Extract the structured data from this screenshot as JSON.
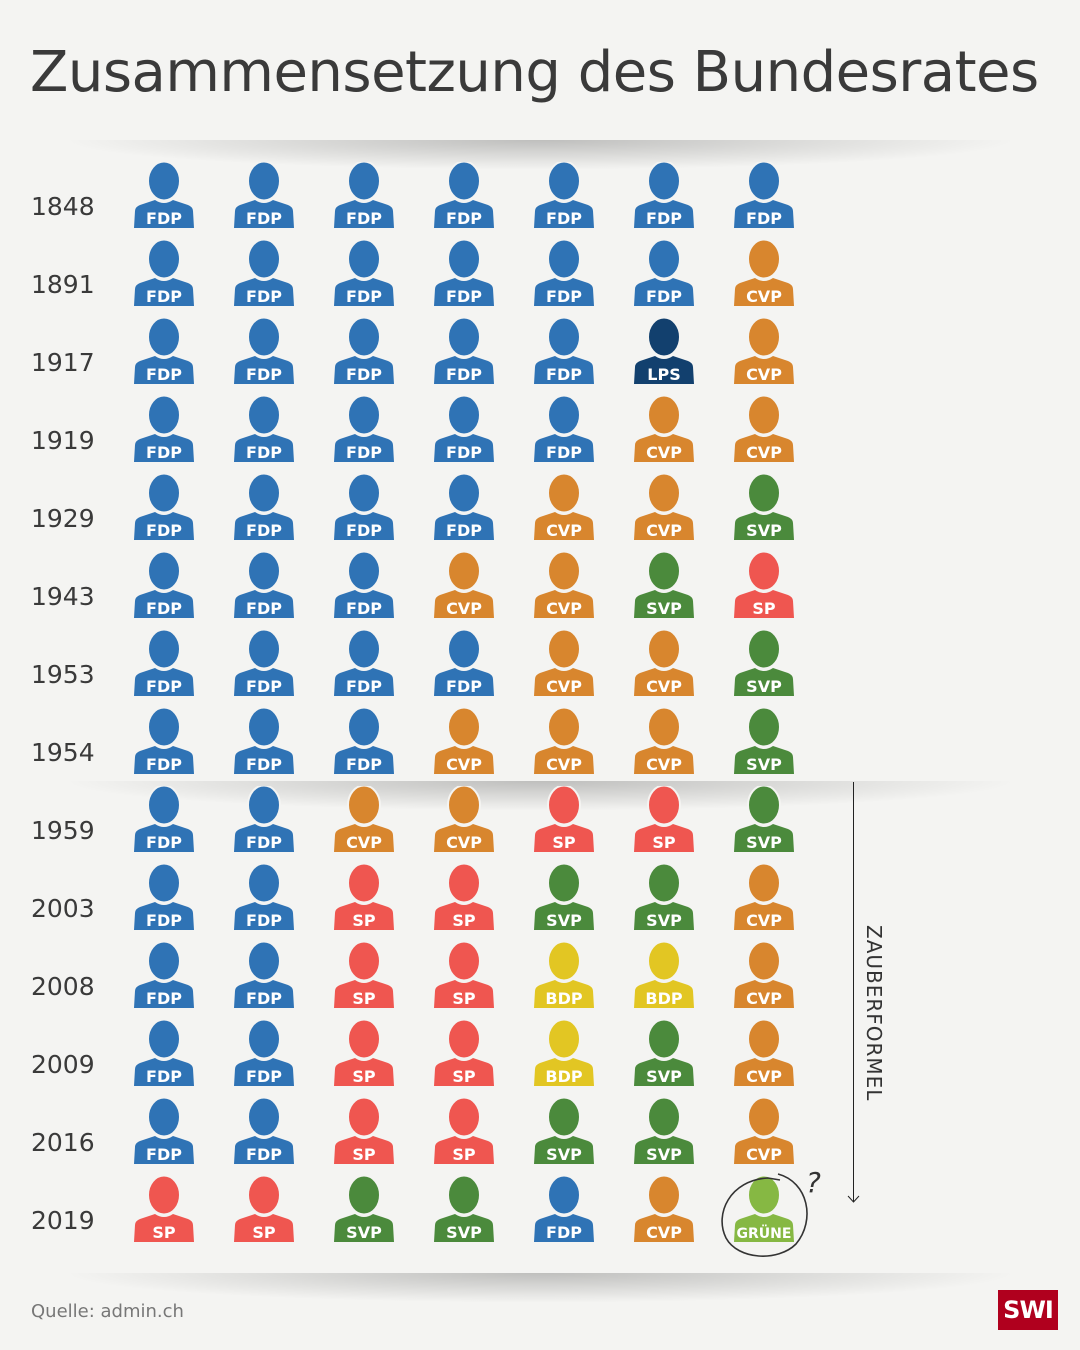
{
  "title": "Zusammensetzung des Bundesrates",
  "annotation": "ZAUBERFORMEL",
  "question_mark": "?",
  "source": "Quelle: admin.ch",
  "logo": "SWI",
  "colors": {
    "FDP": "#2f73b5",
    "CVP": "#d8862e",
    "SVP": "#4b8a3c",
    "SP": "#ef5650",
    "LPS": "#12406e",
    "BDP": "#e2c623",
    "GRÜNE": "#86b843"
  },
  "chart_data": {
    "type": "table",
    "title": "Zusammensetzung des Bundesrates",
    "rows": [
      {
        "year": "1848",
        "seats": [
          "FDP",
          "FDP",
          "FDP",
          "FDP",
          "FDP",
          "FDP",
          "FDP"
        ]
      },
      {
        "year": "1891",
        "seats": [
          "FDP",
          "FDP",
          "FDP",
          "FDP",
          "FDP",
          "FDP",
          "CVP"
        ]
      },
      {
        "year": "1917",
        "seats": [
          "FDP",
          "FDP",
          "FDP",
          "FDP",
          "FDP",
          "LPS",
          "CVP"
        ]
      },
      {
        "year": "1919",
        "seats": [
          "FDP",
          "FDP",
          "FDP",
          "FDP",
          "FDP",
          "CVP",
          "CVP"
        ]
      },
      {
        "year": "1929",
        "seats": [
          "FDP",
          "FDP",
          "FDP",
          "FDP",
          "CVP",
          "CVP",
          "SVP"
        ]
      },
      {
        "year": "1943",
        "seats": [
          "FDP",
          "FDP",
          "FDP",
          "CVP",
          "CVP",
          "SVP",
          "SP"
        ]
      },
      {
        "year": "1953",
        "seats": [
          "FDP",
          "FDP",
          "FDP",
          "FDP",
          "CVP",
          "CVP",
          "SVP"
        ]
      },
      {
        "year": "1954",
        "seats": [
          "FDP",
          "FDP",
          "FDP",
          "CVP",
          "CVP",
          "CVP",
          "SVP"
        ]
      },
      {
        "year": "1959",
        "seats": [
          "FDP",
          "FDP",
          "CVP",
          "CVP",
          "SP",
          "SP",
          "SVP"
        ]
      },
      {
        "year": "2003",
        "seats": [
          "FDP",
          "FDP",
          "SP",
          "SP",
          "SVP",
          "SVP",
          "CVP"
        ]
      },
      {
        "year": "2008",
        "seats": [
          "FDP",
          "FDP",
          "SP",
          "SP",
          "BDP",
          "BDP",
          "CVP"
        ]
      },
      {
        "year": "2009",
        "seats": [
          "FDP",
          "FDP",
          "SP",
          "SP",
          "BDP",
          "SVP",
          "CVP"
        ]
      },
      {
        "year": "2016",
        "seats": [
          "FDP",
          "FDP",
          "SP",
          "SP",
          "SVP",
          "SVP",
          "CVP"
        ]
      },
      {
        "year": "2019",
        "seats": [
          "SP",
          "SP",
          "SVP",
          "SVP",
          "FDP",
          "CVP",
          "GRÜNE"
        ]
      }
    ],
    "highlighted": {
      "year": "2019",
      "seat_index": 6,
      "party": "GRÜNE",
      "note": "?"
    },
    "bracket": {
      "label": "ZAUBERFORMEL",
      "from_year": "1959",
      "to_year": "2019"
    }
  }
}
